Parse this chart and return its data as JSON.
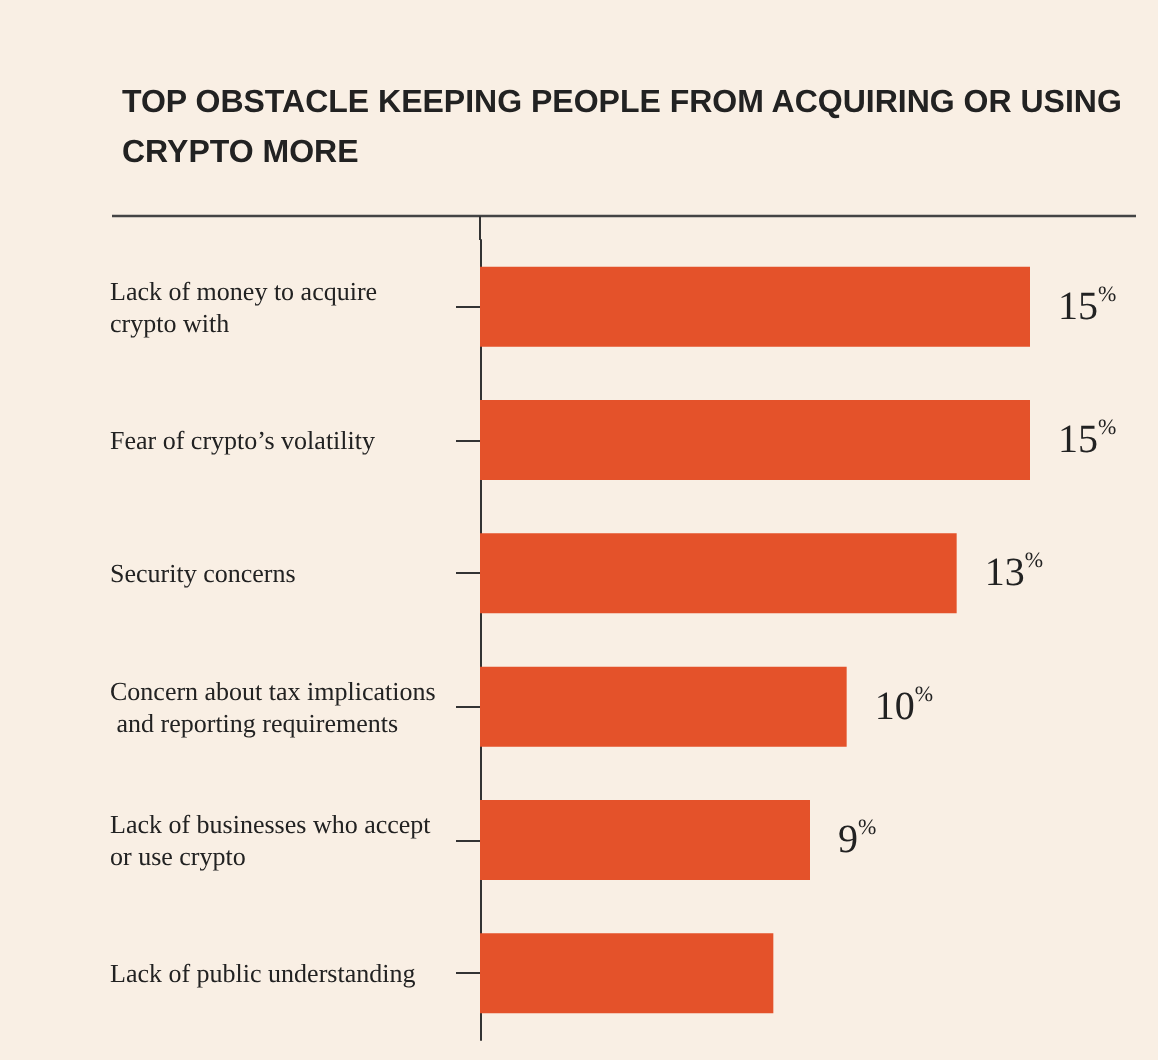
{
  "chart_data": {
    "type": "bar",
    "orientation": "horizontal",
    "title": "TOP OBSTACLE KEEPING PEOPLE FROM ACQUIRING OR USING CRYPTO MORE",
    "categories": [
      "Lack of money to acquire crypto with",
      "Fear of crypto’s volatility",
      "Security concerns",
      "Concern about tax implications and reporting requirements",
      "Lack of businesses who accept or use crypto",
      "Lack of public understanding"
    ],
    "values": [
      15,
      15,
      13,
      10,
      9,
      8
    ],
    "value_labels": [
      "15$^{%}$",
      "15$^{%}$",
      "13$^{%}$",
      "10$^{%}$",
      "9$^{%}$",
      null
    ],
    "color": "#e4522a"
  }
}
